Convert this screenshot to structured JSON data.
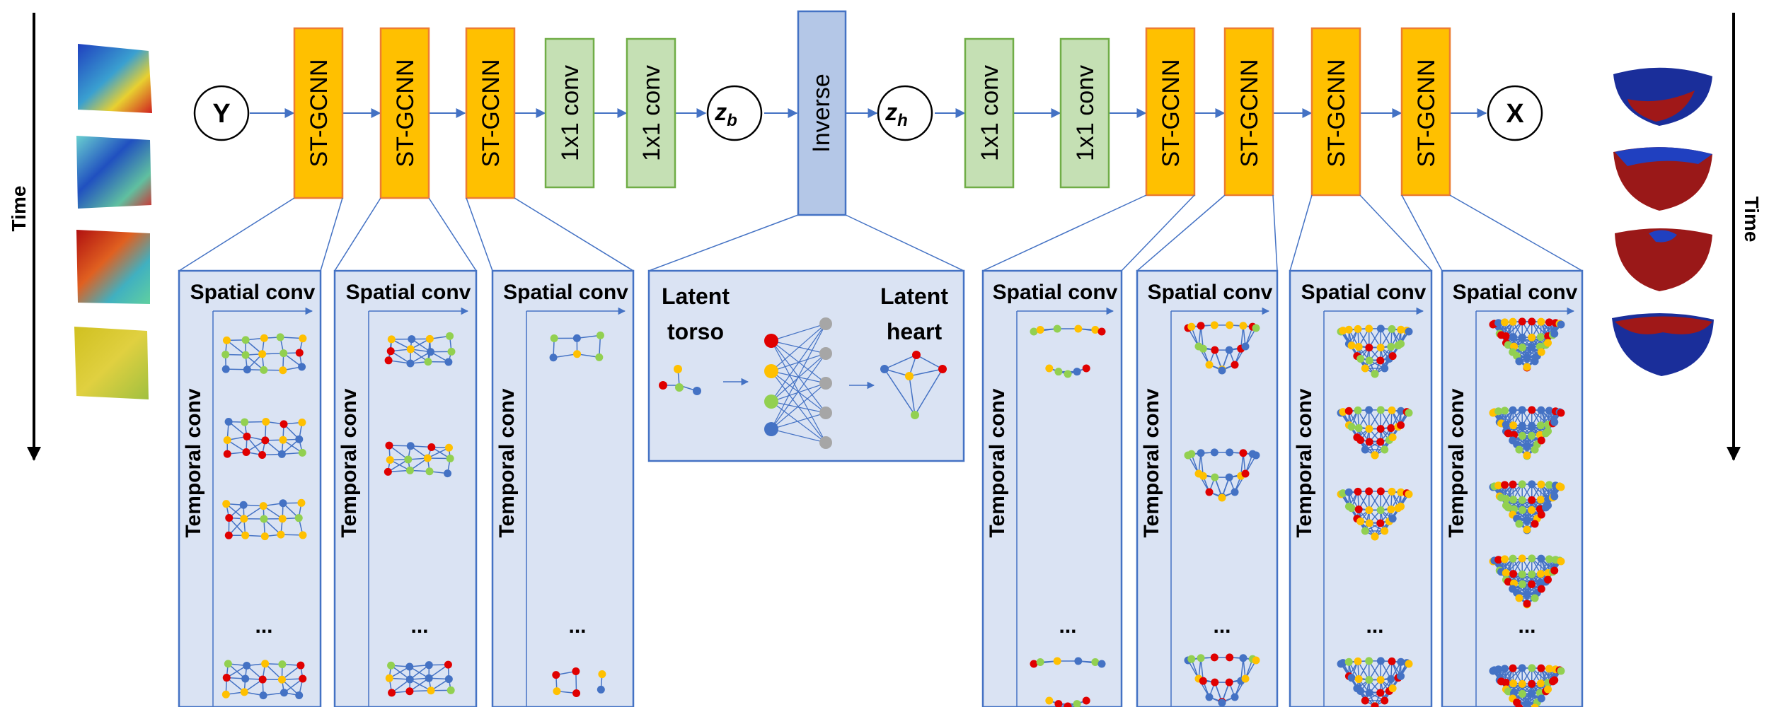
{
  "time_label_left": "Time",
  "time_label_right": "Time",
  "nodes": {
    "input": "Y",
    "output": "X",
    "zb_main": "z",
    "zb_sub": "b",
    "zh_main": "z",
    "zh_sub": "h"
  },
  "encoder_blocks": [
    "ST-GCNN",
    "ST-GCNN",
    "ST-GCNN"
  ],
  "encoder_convs": [
    "1x1 conv",
    "1x1 conv"
  ],
  "inverse_label": "Inverse",
  "decoder_convs": [
    "1x1 conv",
    "1x1 conv"
  ],
  "decoder_blocks": [
    "ST-GCNN",
    "ST-GCNN",
    "ST-GCNN",
    "ST-GCNN"
  ],
  "detail_panel": {
    "spatial_label": "Spatial conv",
    "temporal_label": "Temporal conv",
    "ellipsis": "..."
  },
  "inverse_panel": {
    "latent_torso_line1": "Latent",
    "latent_torso_line2": "torso",
    "latent_heart_line1": "Latent",
    "latent_heart_line2": "heart"
  },
  "colors": {
    "st_gcnn_fill": "#FFC000",
    "st_gcnn_stroke": "#ED7D31",
    "conv_fill": "#C5E0B4",
    "conv_stroke": "#70AD47",
    "inverse_fill": "#B4C7E7",
    "inverse_stroke": "#4472C4",
    "panel_fill": "#DAE3F3",
    "panel_stroke": "#4472C4",
    "node_blue": "#4472C4",
    "node_red": "#E00000",
    "node_yellow": "#FFC000",
    "node_green": "#92D050",
    "node_gray": "#A6A6A6"
  }
}
